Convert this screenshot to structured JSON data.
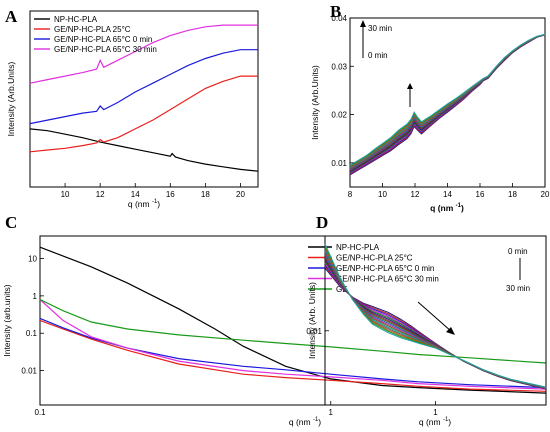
{
  "chart_data": [
    {
      "panel": "A",
      "type": "line",
      "xlabel": "q (nm",
      "xlabel_sup": "-1",
      "xlabel_end": ")",
      "ylabel": "Intensity (Arb.Units)",
      "xlim": [
        8,
        21
      ],
      "ylim": [
        0,
        1
      ],
      "xticks": [
        10,
        12,
        14,
        16,
        18,
        20
      ],
      "yticks_shown": false,
      "legend": "top-left",
      "series": [
        {
          "name": "NP-HC-PLA",
          "color": "#000000",
          "x": [
            8,
            9,
            10,
            11,
            12,
            13,
            14,
            15,
            16,
            16.1,
            16.3,
            17,
            18,
            19,
            20,
            21
          ],
          "y": [
            0.33,
            0.32,
            0.3,
            0.28,
            0.255,
            0.235,
            0.215,
            0.195,
            0.175,
            0.19,
            0.17,
            0.15,
            0.13,
            0.115,
            0.1,
            0.09
          ]
        },
        {
          "name": "GE/NP-HC-PLA 25°C",
          "color": "#e8201c",
          "x": [
            8,
            9,
            10,
            11,
            11.8,
            12,
            12.2,
            13,
            14,
            15,
            16,
            17,
            18,
            19,
            20,
            21
          ],
          "y": [
            0.2,
            0.21,
            0.22,
            0.235,
            0.25,
            0.27,
            0.255,
            0.28,
            0.33,
            0.38,
            0.44,
            0.5,
            0.56,
            0.6,
            0.63,
            0.63
          ]
        },
        {
          "name": "GE/NP-HC-PLA 65°C 0 min",
          "color": "#1a1adc",
          "x": [
            8,
            9,
            10,
            11,
            11.8,
            12,
            12.2,
            13,
            14,
            15,
            16,
            17,
            18,
            19,
            20,
            21
          ],
          "y": [
            0.36,
            0.38,
            0.4,
            0.42,
            0.43,
            0.46,
            0.44,
            0.48,
            0.54,
            0.59,
            0.64,
            0.69,
            0.73,
            0.76,
            0.78,
            0.78
          ]
        },
        {
          "name": "GE/NP-HC-PLA 65°C 30 min",
          "color": "#e030e0",
          "x": [
            8,
            9,
            10,
            11,
            11.8,
            12,
            12.2,
            13,
            14,
            15,
            16,
            17,
            18,
            19,
            20,
            21
          ],
          "y": [
            0.59,
            0.61,
            0.63,
            0.65,
            0.67,
            0.72,
            0.68,
            0.72,
            0.77,
            0.82,
            0.86,
            0.89,
            0.91,
            0.92,
            0.92,
            0.92
          ]
        }
      ]
    },
    {
      "panel": "B",
      "type": "line",
      "xlabel": "q (nm",
      "xlabel_sup": "-1",
      "xlabel_end": ")",
      "ylabel": "Intensity (Arb.Units)",
      "xlim": [
        8,
        20
      ],
      "ylim": [
        0.005,
        0.04
      ],
      "xticks": [
        8,
        10,
        12,
        14,
        16,
        18,
        20
      ],
      "yticks": [
        0.01,
        0.02,
        0.03,
        0.04
      ],
      "ytick_labels": [
        "0.01",
        "0.02",
        "0.03",
        "0.04"
      ],
      "annotations": [
        "30 min",
        "0 min"
      ],
      "n_curves": 16,
      "color_cycle": [
        "#1a1a7a",
        "#d02020",
        "#2020c0",
        "#d020d0",
        "#108010",
        "#202080",
        "#8a1a50",
        "#5a5a00",
        "#1a60c0",
        "#a030a0",
        "#8a4a10",
        "#10a0a0",
        "#606060",
        "#c05010",
        "#1a9a1a",
        "#20a0b0"
      ],
      "base_curve": {
        "x": [
          8,
          8.5,
          9,
          9.5,
          10,
          10.5,
          11,
          11.5,
          11.75,
          11.95,
          12.15,
          12.4,
          13,
          13.5,
          14,
          14.5,
          15,
          15.5,
          16,
          16.2,
          16.5,
          17,
          17.5,
          18,
          18.5,
          19,
          19.5,
          20
        ],
        "y_first": [
          0.0075,
          0.0085,
          0.0095,
          0.0105,
          0.0115,
          0.0125,
          0.0138,
          0.015,
          0.016,
          0.0175,
          0.0168,
          0.016,
          0.0178,
          0.0192,
          0.0205,
          0.0218,
          0.0232,
          0.0248,
          0.0262,
          0.027,
          0.0275,
          0.0295,
          0.0312,
          0.0328,
          0.034,
          0.035,
          0.036,
          0.0365
        ],
        "y_last": [
          0.0095,
          0.0105,
          0.0115,
          0.0128,
          0.014,
          0.0152,
          0.0168,
          0.018,
          0.019,
          0.0205,
          0.0195,
          0.0185,
          0.0198,
          0.021,
          0.0222,
          0.0233,
          0.0245,
          0.0258,
          0.027,
          0.0275,
          0.028,
          0.03,
          0.0318,
          0.0332,
          0.0344,
          0.0354,
          0.0362,
          0.0366
        ]
      }
    },
    {
      "panel": "C",
      "type": "line",
      "xscale": "log",
      "yscale": "log",
      "xlabel": "q (nm",
      "xlabel_sup": "-1",
      "xlabel_end": ")",
      "ylabel": "Intensity (arb.units)",
      "xlim": [
        0.1,
        5.5
      ],
      "ylim": [
        0.0012,
        40
      ],
      "xticks": [
        0.1,
        1
      ],
      "xtick_labels": [
        "0.1",
        "1"
      ],
      "yticks": [
        0.01,
        0.1,
        1,
        10
      ],
      "ytick_labels": [
        "0.01",
        "0.1",
        "1",
        "10"
      ],
      "legend": "top-right",
      "series": [
        {
          "name": "NP-HC-PLA",
          "color": "#000000",
          "x": [
            0.1,
            0.15,
            0.2,
            0.3,
            0.4,
            0.5,
            0.7,
            1.0,
            1.5,
            2,
            3,
            5.5
          ],
          "y": [
            20,
            6,
            2.2,
            0.45,
            0.13,
            0.045,
            0.013,
            0.006,
            0.004,
            0.0035,
            0.003,
            0.0025
          ]
        },
        {
          "name": "GE/NP-HC-PLA 25°C",
          "color": "#e8201c",
          "x": [
            0.1,
            0.12,
            0.15,
            0.2,
            0.3,
            0.5,
            0.7,
            1.0,
            1.5,
            2,
            3,
            5.5
          ],
          "y": [
            0.22,
            0.13,
            0.07,
            0.035,
            0.015,
            0.008,
            0.0065,
            0.0055,
            0.0045,
            0.0038,
            0.0032,
            0.0028
          ]
        },
        {
          "name": "GE/NP-HC-PLA 65°C 0 min",
          "color": "#1a1adc",
          "x": [
            0.1,
            0.12,
            0.15,
            0.2,
            0.3,
            0.5,
            0.7,
            1.0,
            1.5,
            2,
            3,
            5.5
          ],
          "y": [
            0.25,
            0.14,
            0.075,
            0.04,
            0.021,
            0.013,
            0.0105,
            0.008,
            0.006,
            0.005,
            0.0042,
            0.0035
          ]
        },
        {
          "name": "GE/NP-HC-PLA 65°C 30 min",
          "color": "#e030e0",
          "x": [
            0.1,
            0.12,
            0.15,
            0.2,
            0.3,
            0.5,
            0.7,
            1.0,
            1.5,
            2,
            3,
            5.5
          ],
          "y": [
            0.8,
            0.22,
            0.08,
            0.04,
            0.018,
            0.01,
            0.008,
            0.0068,
            0.0055,
            0.0045,
            0.0038,
            0.0032
          ]
        },
        {
          "name": "GE",
          "color": "#1a9a1a",
          "x": [
            0.1,
            0.12,
            0.15,
            0.2,
            0.3,
            0.5,
            0.7,
            1.0,
            1.5,
            2,
            3,
            5.5
          ],
          "y": [
            0.8,
            0.4,
            0.2,
            0.13,
            0.09,
            0.065,
            0.053,
            0.043,
            0.033,
            0.027,
            0.022,
            0.016
          ]
        }
      ]
    },
    {
      "panel": "D",
      "type": "line",
      "xscale": "log",
      "yscale": "log",
      "xlabel": "q (nm",
      "xlabel_sup": "-1",
      "xlabel_end": ")",
      "ylabel": "Intensity (Arb. Units)",
      "xlim": [
        0.2,
        5
      ],
      "ylim": [
        0.0012,
        0.15
      ],
      "xticks": [
        1
      ],
      "xtick_labels": [
        "1"
      ],
      "yticks": [
        0.01
      ],
      "ytick_labels": [
        "0.01"
      ],
      "annotations": [
        "0 min",
        "30 min"
      ],
      "n_curves": 16,
      "color_cycle": [
        "#1a1a7a",
        "#d02020",
        "#2020c0",
        "#d020d0",
        "#108010",
        "#202080",
        "#8a1a50",
        "#5a5a00",
        "#1a60c0",
        "#a030a0",
        "#8a4a10",
        "#10a0a0",
        "#606060",
        "#c05010",
        "#1a9a1a",
        "#20a0b0"
      ],
      "base_curve": {
        "x": [
          0.2,
          0.25,
          0.3,
          0.35,
          0.4,
          0.5,
          0.6,
          0.7,
          0.8,
          1.0,
          1.2,
          1.5,
          2.0,
          2.5,
          3,
          4,
          5
        ],
        "y_first": [
          0.06,
          0.035,
          0.026,
          0.022,
          0.02,
          0.017,
          0.014,
          0.0115,
          0.0095,
          0.007,
          0.0055,
          0.0042,
          0.0032,
          0.0027,
          0.0024,
          0.0021,
          0.0019
        ],
        "y_last": [
          0.12,
          0.045,
          0.024,
          0.016,
          0.012,
          0.0095,
          0.0082,
          0.0075,
          0.0069,
          0.0061,
          0.0052,
          0.0043,
          0.0033,
          0.0028,
          0.0025,
          0.0022,
          0.002
        ]
      }
    }
  ]
}
